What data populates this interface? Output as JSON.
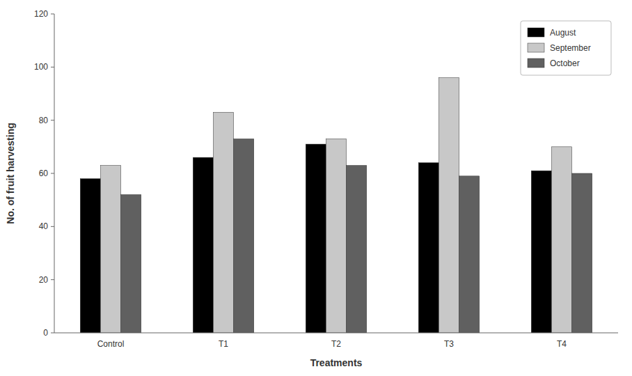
{
  "chart_data": {
    "type": "bar",
    "categories": [
      "Control",
      "T1",
      "T2",
      "T3",
      "T4"
    ],
    "series": [
      {
        "name": "August",
        "color": "#000000",
        "values": [
          58,
          66,
          71,
          64,
          61
        ]
      },
      {
        "name": "September",
        "color": "#c8c8c8",
        "values": [
          63,
          83,
          73,
          96,
          70
        ]
      },
      {
        "name": "October",
        "color": "#606060",
        "values": [
          52,
          73,
          63,
          59,
          60
        ]
      }
    ],
    "xlabel": "Treatments",
    "ylabel": "No. of fruit harvesting",
    "ylim": [
      0,
      120
    ],
    "yticks": [
      0,
      20,
      40,
      60,
      80,
      100,
      120
    ],
    "grid": false,
    "legend": "upper right"
  }
}
